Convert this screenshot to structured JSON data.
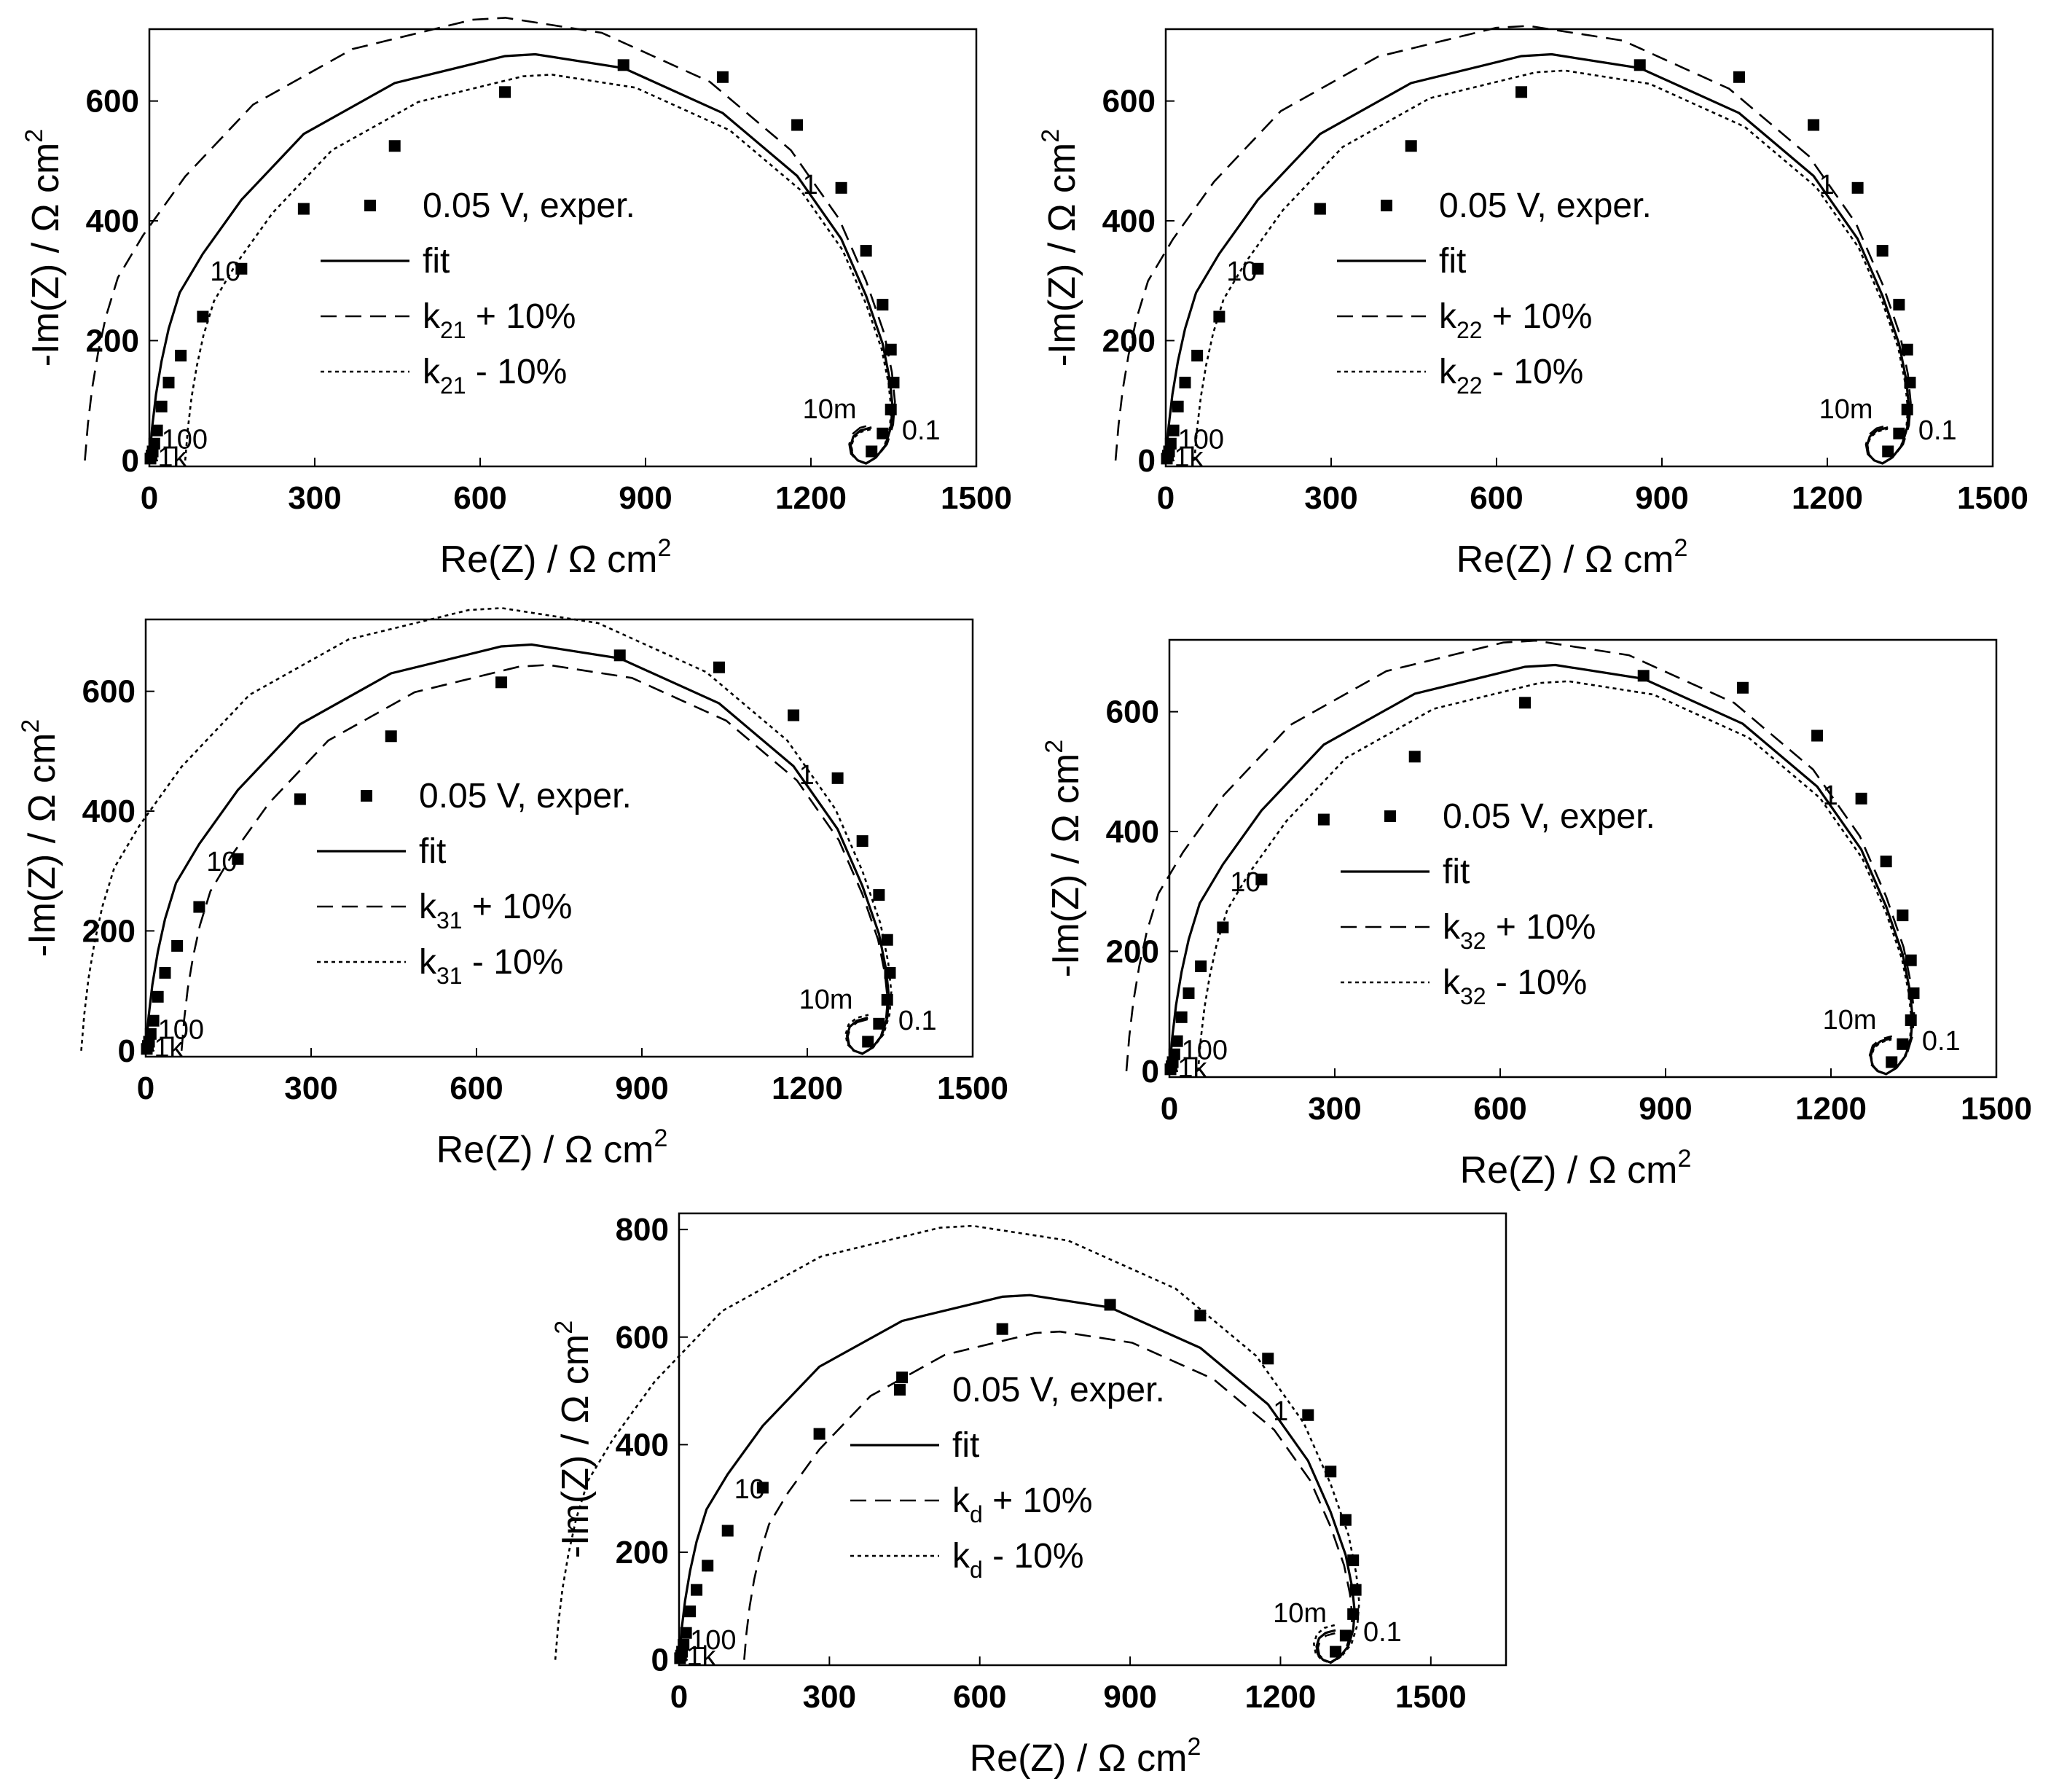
{
  "chart_data": [
    {
      "type": "scatter",
      "panel": "k21",
      "xlabel": "Re(Z) / Ω cm",
      "xlabel_sup": "2",
      "ylabel": "-Im(Z) / Ω cm",
      "ylabel_sup": "2",
      "xlim": [
        0,
        1500
      ],
      "ylim": [
        -10,
        720
      ],
      "xticks": [
        0,
        300,
        600,
        900,
        1200,
        1500
      ],
      "yticks": [
        0,
        200,
        400,
        600
      ],
      "legend": {
        "exper": "0.05 V, exper.",
        "fit": "fit",
        "plus": {
          "prefix": "k",
          "sub": "21",
          "suffix": " + 10%"
        },
        "minus": {
          "prefix": "k",
          "sub": "21",
          "suffix": " - 10%"
        }
      },
      "freq_labels": [
        "1k",
        "100",
        "10",
        "1",
        "0.1",
        "10m"
      ],
      "grid": false,
      "curve_scale": {
        "plus": 1.09,
        "minus": 0.95
      }
    },
    {
      "type": "scatter",
      "panel": "k22",
      "xlabel": "Re(Z) / Ω cm",
      "xlabel_sup": "2",
      "ylabel": "-Im(Z) / Ω cm",
      "ylabel_sup": "2",
      "xlim": [
        0,
        1500
      ],
      "ylim": [
        -10,
        720
      ],
      "xticks": [
        0,
        300,
        600,
        900,
        1200,
        1500
      ],
      "yticks": [
        0,
        200,
        400,
        600
      ],
      "legend": {
        "exper": "0.05 V, exper.",
        "fit": "fit",
        "plus": {
          "prefix": "k",
          "sub": "22",
          "suffix": " + 10%"
        },
        "minus": {
          "prefix": "k",
          "sub": "22",
          "suffix": " - 10%"
        }
      },
      "freq_labels": [
        "1k",
        "100",
        "10",
        "1",
        "0.1",
        "10m"
      ],
      "grid": false,
      "curve_scale": {
        "plus": 1.07,
        "minus": 0.96
      }
    },
    {
      "type": "scatter",
      "panel": "k31",
      "xlabel": "Re(Z) / Ω cm",
      "xlabel_sup": "2",
      "ylabel": "-Im(Z) / Ω cm",
      "ylabel_sup": "2",
      "xlim": [
        0,
        1500
      ],
      "ylim": [
        -10,
        720
      ],
      "xticks": [
        0,
        300,
        600,
        900,
        1200,
        1500
      ],
      "yticks": [
        0,
        200,
        400,
        600
      ],
      "legend": {
        "exper": "0.05 V, exper.",
        "fit": "fit",
        "plus": {
          "prefix": "k",
          "sub": "31",
          "suffix": " + 10%"
        },
        "minus": {
          "prefix": "k",
          "sub": "31",
          "suffix": " - 10%"
        }
      },
      "freq_labels": [
        "1k",
        "100",
        "10",
        "1",
        "0.1",
        "10m"
      ],
      "grid": false,
      "curve_scale": {
        "plus": 0.95,
        "minus": 1.09
      }
    },
    {
      "type": "scatter",
      "panel": "k32",
      "xlabel": "Re(Z) / Ω cm",
      "xlabel_sup": "2",
      "ylabel": "-Im(Z) / Ω cm",
      "ylabel_sup": "2",
      "xlim": [
        0,
        1500
      ],
      "ylim": [
        -10,
        720
      ],
      "xticks": [
        0,
        300,
        600,
        900,
        1200,
        1500
      ],
      "yticks": [
        0,
        200,
        400,
        600
      ],
      "legend": {
        "exper": "0.05 V, exper.",
        "fit": "fit",
        "plus": {
          "prefix": "k",
          "sub": "32",
          "suffix": " + 10%"
        },
        "minus": {
          "prefix": "k",
          "sub": "32",
          "suffix": " - 10%"
        }
      },
      "freq_labels": [
        "1k",
        "100",
        "10",
        "1",
        "0.1",
        "10m"
      ],
      "grid": false,
      "curve_scale": {
        "plus": 1.06,
        "minus": 0.96
      }
    },
    {
      "type": "scatter",
      "panel": "kd",
      "xlabel": "Re(Z) / Ω cm",
      "xlabel_sup": "2",
      "ylabel": "-Im(Z) / Ω cm",
      "ylabel_sup": "2",
      "xlim": [
        0,
        1650
      ],
      "ylim": [
        -10,
        830
      ],
      "xticks": [
        0,
        300,
        600,
        900,
        1200,
        1500
      ],
      "yticks": [
        0,
        200,
        400,
        600,
        800
      ],
      "legend": {
        "exper": "0.05 V, exper.",
        "fit": "fit",
        "plus": {
          "prefix": "k",
          "sub": "d",
          "suffix": " + 10%"
        },
        "minus": {
          "prefix": "k",
          "sub": "d",
          "suffix": " - 10%"
        }
      },
      "freq_labels": [
        "1k",
        "100",
        "10",
        "1",
        "0.1",
        "10m"
      ],
      "grid": false,
      "curve_scale": {
        "plus": 0.9,
        "minus": 1.19
      }
    }
  ],
  "experimental_points": {
    "x": [
      2,
      4,
      6,
      9,
      14,
      22,
      35,
      57,
      97,
      167,
      280,
      445,
      645,
      860,
      1040,
      1175,
      1255,
      1300,
      1330,
      1345,
      1350,
      1345,
      1330,
      1310
    ],
    "y": [
      3,
      8,
      15,
      28,
      50,
      90,
      130,
      175,
      240,
      320,
      420,
      525,
      615,
      660,
      640,
      560,
      455,
      350,
      260,
      185,
      130,
      85,
      45,
      15
    ]
  },
  "fit_curve": {
    "x": [
      0,
      5,
      12,
      22,
      35,
      55,
      97,
      167,
      280,
      445,
      645,
      700,
      860,
      1040,
      1175,
      1255,
      1300,
      1330,
      1343,
      1348,
      1345,
      1335,
      1318,
      1300,
      1285,
      1275,
      1272,
      1277,
      1290,
      1310
    ],
    "y": [
      0,
      55,
      110,
      165,
      220,
      280,
      345,
      435,
      545,
      630,
      675,
      678,
      655,
      580,
      475,
      370,
      275,
      195,
      135,
      90,
      55,
      25,
      5,
      -5,
      0,
      10,
      25,
      40,
      50,
      55
    ]
  },
  "colors": {
    "ink": "#000000",
    "background": "#ffffff"
  }
}
